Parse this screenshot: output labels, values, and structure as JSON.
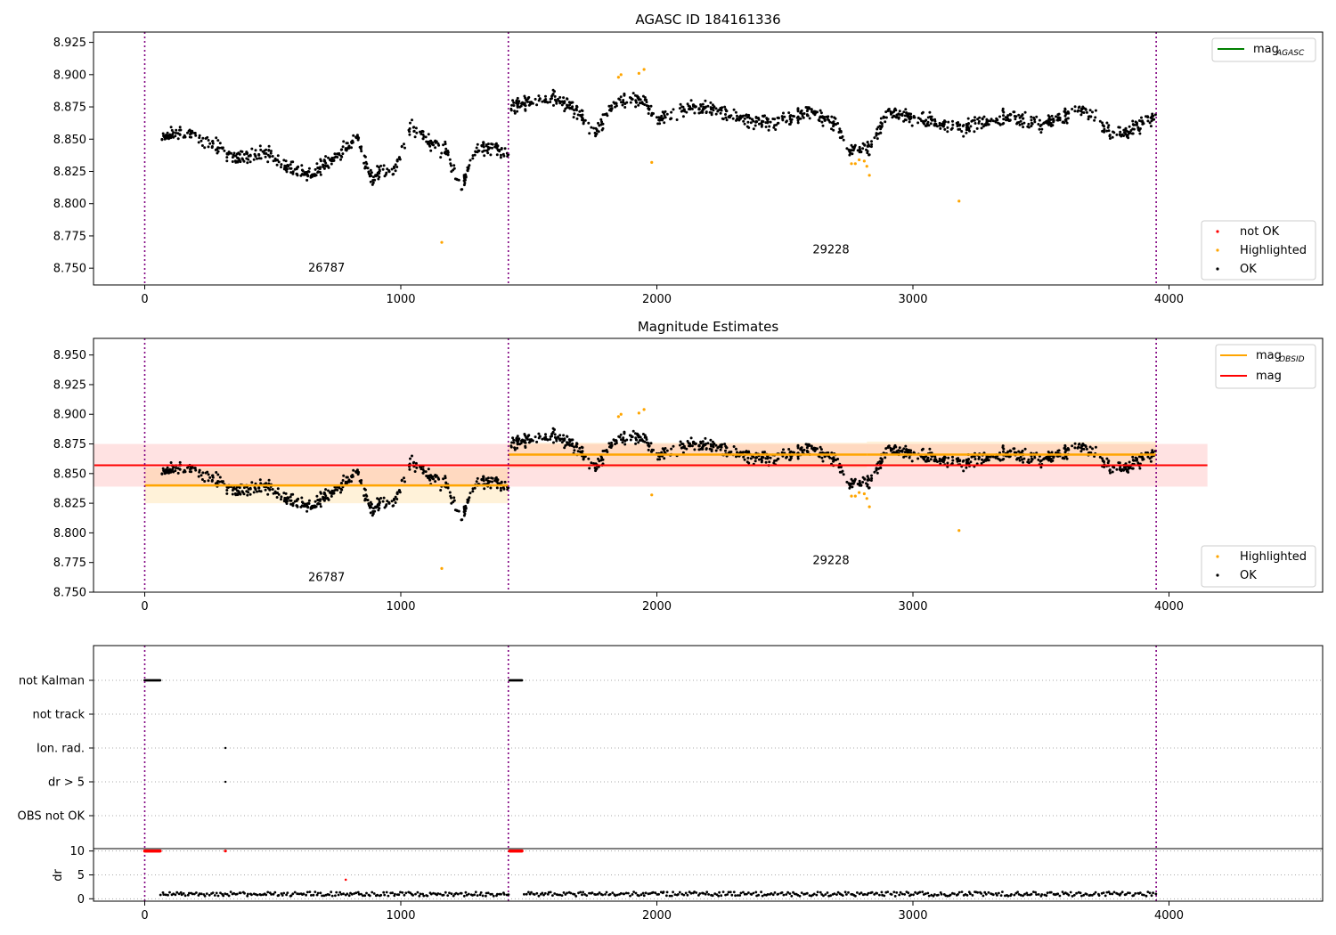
{
  "chart_data": [
    {
      "type": "scatter",
      "title": "AGASC ID 184161336",
      "xlim": [
        -200,
        4600
      ],
      "ylim": [
        8.737,
        8.933
      ],
      "xticks": [
        0,
        1000,
        2000,
        3000,
        4000
      ],
      "yticks": [
        8.75,
        8.775,
        8.8,
        8.825,
        8.85,
        8.875,
        8.9,
        8.925
      ],
      "obs_boundaries": [
        0,
        1420,
        3950
      ],
      "obsid_labels": [
        {
          "text": "26787",
          "x": 710,
          "y": 8.7475
        },
        {
          "text": "29228",
          "x": 2680,
          "y": 8.7615
        }
      ],
      "line_legend": [
        {
          "label": "mag",
          "sub": "AGASC",
          "color": "#008000"
        }
      ],
      "marker_legend": [
        {
          "label": "not OK",
          "color": "#ff0000"
        },
        {
          "label": "Highlighted",
          "color": "#ffa500"
        },
        {
          "label": "OK",
          "color": "#000000"
        }
      ],
      "highlighted_points": [
        [
          1160,
          8.77
        ],
        [
          1850,
          8.898
        ],
        [
          1860,
          8.9
        ],
        [
          1930,
          8.901
        ],
        [
          1950,
          8.904
        ],
        [
          1980,
          8.832
        ],
        [
          2760,
          8.831
        ],
        [
          2775,
          8.831
        ],
        [
          2790,
          8.834
        ],
        [
          2810,
          8.833
        ],
        [
          2820,
          8.829
        ],
        [
          2830,
          8.822
        ],
        [
          3180,
          8.802
        ]
      ],
      "ok_series": {
        "segments": [
          {
            "x0": 60,
            "x1": 1420,
            "trend": [
              [
                60,
                8.85
              ],
              [
                180,
                8.855
              ],
              [
                250,
                8.848
              ],
              [
                340,
                8.835
              ],
              [
                470,
                8.84
              ],
              [
                560,
                8.828
              ],
              [
                650,
                8.822
              ],
              [
                760,
                8.838
              ],
              [
                830,
                8.852
              ],
              [
                880,
                8.82
              ],
              [
                980,
                8.828
              ],
              [
                1040,
                8.86
              ],
              [
                1100,
                8.85
              ],
              [
                1180,
                8.84
              ],
              [
                1240,
                8.812
              ],
              [
                1290,
                8.842
              ],
              [
                1350,
                8.845
              ],
              [
                1420,
                8.838
              ]
            ]
          },
          {
            "x0": 1425,
            "x1": 3950,
            "trend": [
              [
                1425,
                8.875
              ],
              [
                1600,
                8.882
              ],
              [
                1700,
                8.87
              ],
              [
                1760,
                8.855
              ],
              [
                1850,
                8.88
              ],
              [
                1950,
                8.88
              ],
              [
                2000,
                8.865
              ],
              [
                2150,
                8.875
              ],
              [
                2300,
                8.868
              ],
              [
                2450,
                8.862
              ],
              [
                2600,
                8.872
              ],
              [
                2700,
                8.862
              ],
              [
                2750,
                8.843
              ],
              [
                2830,
                8.842
              ],
              [
                2900,
                8.872
              ],
              [
                3100,
                8.862
              ],
              [
                3200,
                8.858
              ],
              [
                3380,
                8.868
              ],
              [
                3500,
                8.86
              ],
              [
                3650,
                8.873
              ],
              [
                3800,
                8.852
              ],
              [
                3950,
                8.868
              ]
            ]
          }
        ],
        "noise": 0.01,
        "count": 1500
      }
    },
    {
      "type": "scatter",
      "title": "Magnitude Estimates",
      "xlim": [
        -200,
        4600
      ],
      "ylim": [
        8.75,
        8.964
      ],
      "xticks": [
        0,
        1000,
        2000,
        3000,
        4000
      ],
      "yticks": [
        8.75,
        8.775,
        8.8,
        8.825,
        8.85,
        8.875,
        8.9,
        8.925,
        8.95
      ],
      "obs_boundaries": [
        0,
        1420,
        3950
      ],
      "obsid_labels": [
        {
          "text": "26787",
          "x": 710,
          "y": 8.7595
        },
        {
          "text": "29228",
          "x": 2680,
          "y": 8.7735
        }
      ],
      "mag": {
        "value": 8.857,
        "band": [
          8.839,
          8.875
        ],
        "x": [
          -200,
          4150
        ],
        "color": "#ff0000",
        "band_color": "#ffdddd"
      },
      "mag_obsid": [
        {
          "x": [
            0,
            1420
          ],
          "value": 8.84,
          "band": [
            8.825,
            8.855
          ]
        },
        {
          "x": [
            1420,
            2820
          ],
          "value": 8.866,
          "band": [
            8.855,
            8.876
          ]
        },
        {
          "x": [
            2820,
            3950
          ],
          "value": 8.866,
          "band": [
            8.856,
            8.877
          ]
        }
      ],
      "mag_obsid_color": "#ffa500",
      "line_legend": [
        {
          "label": "mag",
          "sub": "OBSID",
          "color": "#ffa500"
        },
        {
          "label": "mag",
          "sub": "",
          "color": "#ff0000"
        }
      ],
      "marker_legend": [
        {
          "label": "Highlighted",
          "color": "#ffa500"
        },
        {
          "label": "OK",
          "color": "#000000"
        }
      ]
    },
    {
      "type": "scatter",
      "title": "",
      "xlim": [
        -200,
        4600
      ],
      "xticks": [
        0,
        1000,
        2000,
        3000,
        4000
      ],
      "flag_rows": [
        "not Kalman",
        "not track",
        "Ion. rad.",
        "dr > 5",
        "OBS not OK"
      ],
      "flag_points": [
        {
          "row": "not Kalman",
          "x_start": 0,
          "x_end": 60
        },
        {
          "row": "not Kalman",
          "x_start": 1425,
          "x_end": 1475
        },
        {
          "row": "Ion. rad.",
          "x_start": 315,
          "x_end": 315
        },
        {
          "row": "dr > 5",
          "x_start": 315,
          "x_end": 315
        }
      ],
      "dr": {
        "ylabel": "dr",
        "yticks": [
          0,
          5,
          10
        ],
        "ylim": [
          -0.5,
          10.5
        ],
        "capped_red": [
          [
            0,
            60,
            10
          ],
          [
            315,
            315,
            10
          ],
          [
            1425,
            1475,
            10
          ]
        ],
        "red_points": [
          [
            785,
            4
          ]
        ],
        "ok_level": 1.0,
        "ok_range": [
          [
            60,
            1420
          ],
          [
            1480,
            3950
          ]
        ]
      }
    }
  ]
}
